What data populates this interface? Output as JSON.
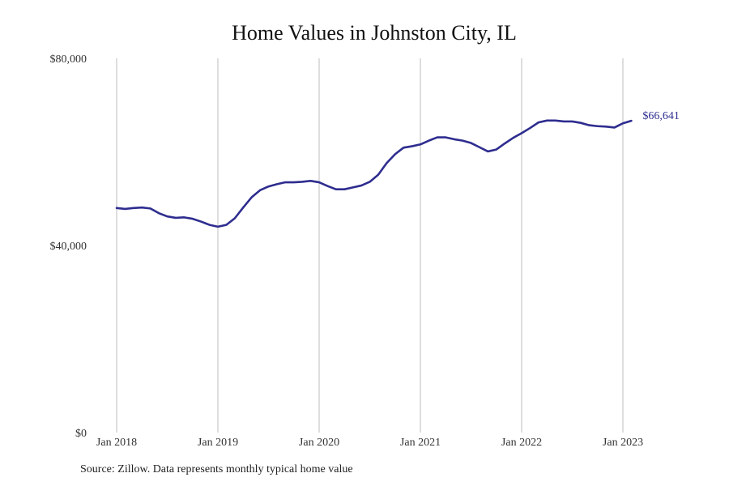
{
  "chart_data": {
    "type": "line",
    "title": "Home Values in Johnston City, IL",
    "xlabel": "",
    "ylabel": "",
    "ylim": [
      0,
      80000
    ],
    "y_ticks": [
      {
        "value": 0,
        "label": "$0"
      },
      {
        "value": 40000,
        "label": "$40,000"
      },
      {
        "value": 80000,
        "label": "$80,000"
      }
    ],
    "x_ticks": [
      {
        "value": "2018-01",
        "label": "Jan 2018"
      },
      {
        "value": "2019-01",
        "label": "Jan 2019"
      },
      {
        "value": "2020-01",
        "label": "Jan 2020"
      },
      {
        "value": "2021-01",
        "label": "Jan 2021"
      },
      {
        "value": "2022-01",
        "label": "Jan 2022"
      },
      {
        "value": "2023-01",
        "label": "Jan 2023"
      }
    ],
    "grid": "vertical",
    "line_color": "#2e2d8f",
    "series": [
      {
        "x": [
          "2018-01",
          "2018-02",
          "2018-03",
          "2018-04",
          "2018-05",
          "2018-06",
          "2018-07",
          "2018-08",
          "2018-09",
          "2018-10",
          "2018-11",
          "2018-12",
          "2019-01",
          "2019-02",
          "2019-03",
          "2019-04",
          "2019-05",
          "2019-06",
          "2019-07",
          "2019-08",
          "2019-09",
          "2019-10",
          "2019-11",
          "2019-12",
          "2020-01",
          "2020-02",
          "2020-03",
          "2020-04",
          "2020-05",
          "2020-06",
          "2020-07",
          "2020-08",
          "2020-09",
          "2020-10",
          "2020-11",
          "2020-12",
          "2021-01",
          "2021-02",
          "2021-03",
          "2021-04",
          "2021-05",
          "2021-06",
          "2021-07",
          "2021-08",
          "2021-09",
          "2021-10",
          "2021-11",
          "2021-12",
          "2022-01",
          "2022-02",
          "2022-03",
          "2022-04",
          "2022-05",
          "2022-06",
          "2022-07",
          "2022-08",
          "2022-09",
          "2022-10",
          "2022-11",
          "2022-12",
          "2023-01",
          "2023-02"
        ],
        "values": [
          48000,
          47800,
          48000,
          48100,
          47900,
          46900,
          46200,
          45900,
          46000,
          45700,
          45100,
          44400,
          44000,
          44400,
          45800,
          48100,
          50300,
          51800,
          52600,
          53100,
          53500,
          53500,
          53600,
          53800,
          53500,
          52700,
          52000,
          52000,
          52400,
          52800,
          53600,
          55100,
          57600,
          59500,
          60900,
          61200,
          61600,
          62400,
          63100,
          63100,
          62700,
          62400,
          61900,
          61000,
          60100,
          60500,
          61800,
          63000,
          64000,
          65100,
          66300,
          66700,
          66700,
          66500,
          66500,
          66200,
          65700,
          65500,
          65400,
          65200,
          66100,
          66641
        ]
      }
    ],
    "end_label": "$66,641"
  },
  "source_text": "Source: Zillow. Data represents monthly typical home value"
}
